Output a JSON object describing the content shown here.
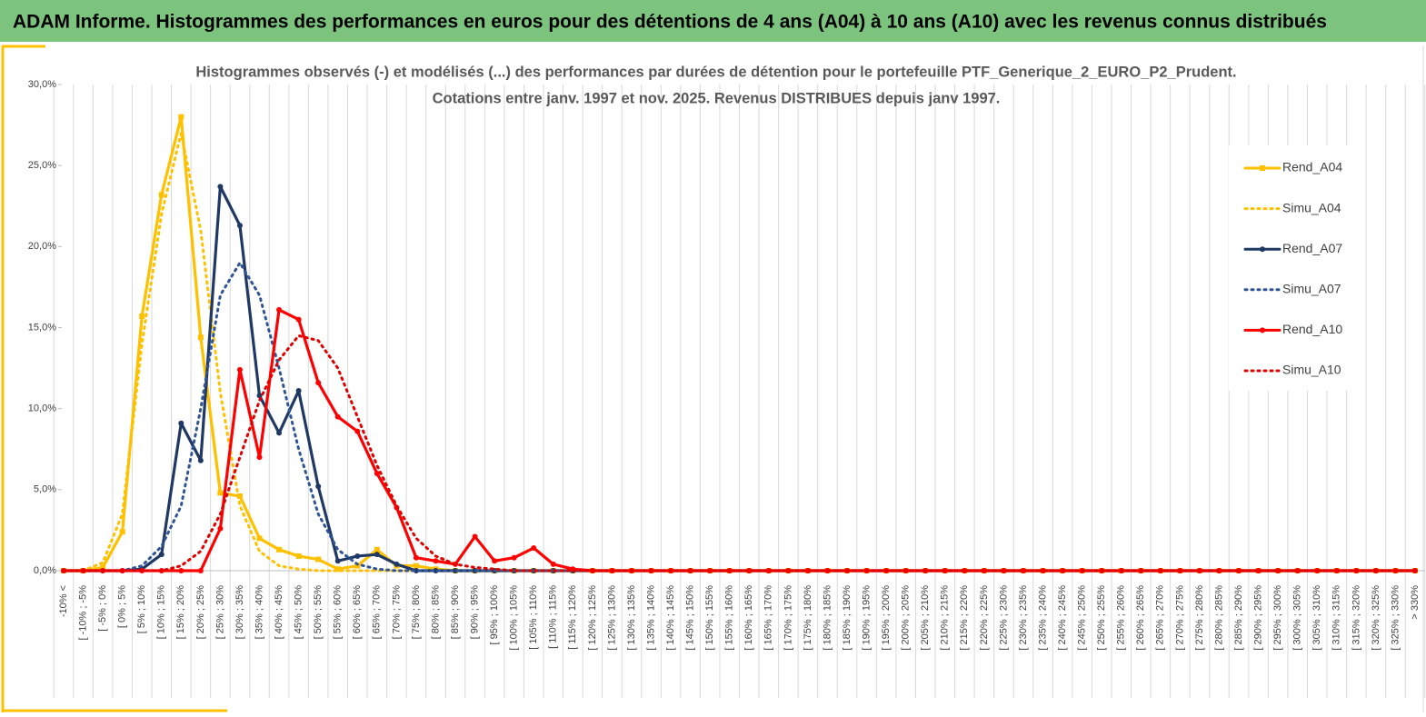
{
  "header": {
    "title": "ADAM Informe. Histogrammes des performances en euros pour des détentions de 4 ans (A04) à 10 ans (A10) avec les revenus connus distribués"
  },
  "chart_data": {
    "type": "line",
    "title": "Histogrammes observés (-) et modélisés (...) des performances par durées de détention pour le portefeuille PTF_Generique_2_EURO_P2_Prudent.",
    "subtitle": "Cotations entre janv. 1997 et nov. 2025. Revenus DISTRIBUES depuis janv 1997.",
    "categories": [
      "-10% <",
      "[ -10% ; -5%",
      "[ -5% ; 0%",
      "[ 0% ; 5%",
      "[ 5% ; 10%",
      "[ 10% ; 15%",
      "[ 15% ; 20%",
      "[ 20% ; 25%",
      "[ 25% ; 30%",
      "[ 30% ; 35%",
      "[ 35% ; 40%",
      "[ 40% ; 45%",
      "[ 45% ; 50%",
      "[ 50% ; 55%",
      "[ 55% ; 60%",
      "[ 60% ; 65%",
      "[ 65% ; 70%",
      "[ 70% ; 75%",
      "[ 75% ; 80%",
      "[ 80% ; 85%",
      "[ 85% ; 90%",
      "[ 90% ; 95%",
      "[ 95% ; 100%",
      "[ 100% ; 105%",
      "[ 105% ; 110%",
      "[ 110% ; 115%",
      "[ 115% ; 120%",
      "[ 120% ; 125%",
      "[ 125% ; 130%",
      "[ 130% ; 135%",
      "[ 135% ; 140%",
      "[ 140% ; 145%",
      "[ 145% ; 150%",
      "[ 150% ; 155%",
      "[ 155% ; 160%",
      "[ 160% ; 165%",
      "[ 165% ; 170%",
      "[ 170% ; 175%",
      "[ 175% ; 180%",
      "[ 180% ; 185%",
      "[ 185% ; 190%",
      "[ 190% ; 195%",
      "[ 195% ; 200%",
      "[ 200% ; 205%",
      "[ 205% ; 210%",
      "[ 210% ; 215%",
      "[ 215% ; 220%",
      "[ 220% ; 225%",
      "[ 225% ; 230%",
      "[ 230% ; 235%",
      "[ 235% ; 240%",
      "[ 240% ; 245%",
      "[ 245% ; 250%",
      "[ 250% ; 255%",
      "[ 255% ; 260%",
      "[ 260% ; 265%",
      "[ 265% ; 270%",
      "[ 270% ; 275%",
      "[ 275% ; 280%",
      "[ 280% ; 285%",
      "[ 285% ; 290%",
      "[ 290% ; 295%",
      "[ 295% ; 300%",
      "[ 300% ; 305%",
      "[ 305% ; 310%",
      "[ 310% ; 315%",
      "[ 315% ; 320%",
      "[ 320% ; 325%",
      "[ 325% ; 330%",
      "> 330%"
    ],
    "series": [
      {
        "name": "Rend_A04",
        "color": "#ffc000",
        "style": "solid",
        "marker": "square",
        "values": [
          0,
          0,
          0.2,
          2.4,
          15.7,
          23.2,
          28.0,
          14.4,
          4.8,
          4.6,
          2.0,
          1.3,
          0.9,
          0.7,
          0.1,
          0.3,
          1.3,
          0.3,
          0.3,
          0.1,
          0,
          0,
          0,
          0,
          0,
          0,
          0,
          0,
          0,
          0,
          0,
          0,
          0,
          0,
          0,
          0,
          0,
          0,
          0,
          0,
          0,
          0,
          0,
          0,
          0,
          0,
          0,
          0,
          0,
          0,
          0,
          0,
          0,
          0,
          0,
          0,
          0,
          0,
          0,
          0,
          0,
          0,
          0,
          0,
          0,
          0,
          0,
          0,
          0,
          0
        ]
      },
      {
        "name": "Simu_A04",
        "color": "#ffc000",
        "style": "dotted",
        "values": [
          0,
          0,
          0.5,
          3.5,
          14,
          22,
          27,
          21,
          11,
          4,
          1.2,
          0.3,
          0.1,
          0,
          0,
          0,
          0,
          0,
          0,
          0,
          0,
          0,
          0,
          0,
          0,
          0,
          0,
          0,
          0,
          0,
          0,
          0,
          0,
          0,
          0,
          0,
          0,
          0,
          0,
          0,
          0,
          0,
          0,
          0,
          0,
          0,
          0,
          0,
          0,
          0,
          0,
          0,
          0,
          0,
          0,
          0,
          0,
          0,
          0,
          0,
          0,
          0,
          0,
          0,
          0,
          0,
          0,
          0,
          0,
          0
        ]
      },
      {
        "name": "Rend_A07",
        "color": "#1f3864",
        "style": "solid",
        "marker": "circle",
        "values": [
          0,
          0,
          0,
          0,
          0.1,
          1.0,
          9.1,
          6.8,
          23.7,
          21.3,
          10.8,
          8.5,
          11.1,
          5.2,
          0.6,
          0.9,
          1.0,
          0.4,
          0,
          0,
          0,
          0,
          0,
          0,
          0,
          0,
          0,
          0,
          0,
          0,
          0,
          0,
          0,
          0,
          0,
          0,
          0,
          0,
          0,
          0,
          0,
          0,
          0,
          0,
          0,
          0,
          0,
          0,
          0,
          0,
          0,
          0,
          0,
          0,
          0,
          0,
          0,
          0,
          0,
          0,
          0,
          0,
          0,
          0,
          0,
          0,
          0,
          0,
          0,
          0
        ]
      },
      {
        "name": "Simu_A07",
        "color": "#2f5597",
        "style": "dotted",
        "values": [
          0,
          0,
          0,
          0,
          0.3,
          1.5,
          4,
          10,
          17,
          19,
          17,
          12.5,
          7.5,
          3.5,
          1.3,
          0.4,
          0.1,
          0,
          0,
          0,
          0,
          0,
          0,
          0,
          0,
          0,
          0,
          0,
          0,
          0,
          0,
          0,
          0,
          0,
          0,
          0,
          0,
          0,
          0,
          0,
          0,
          0,
          0,
          0,
          0,
          0,
          0,
          0,
          0,
          0,
          0,
          0,
          0,
          0,
          0,
          0,
          0,
          0,
          0,
          0,
          0,
          0,
          0,
          0,
          0,
          0,
          0,
          0,
          0,
          0
        ]
      },
      {
        "name": "Rend_A10",
        "color": "#ff0000",
        "style": "solid",
        "marker": "circle",
        "values": [
          0,
          0,
          0,
          0,
          0,
          0,
          0,
          0,
          2.6,
          12.4,
          7.0,
          16.1,
          15.5,
          11.6,
          9.5,
          8.6,
          6.0,
          3.9,
          0.8,
          0.6,
          0.4,
          2.1,
          0.6,
          0.8,
          1.4,
          0.4,
          0.1,
          0,
          0,
          0,
          0,
          0,
          0,
          0,
          0,
          0,
          0,
          0,
          0,
          0,
          0,
          0,
          0,
          0,
          0,
          0,
          0,
          0,
          0,
          0,
          0,
          0,
          0,
          0,
          0,
          0,
          0,
          0,
          0,
          0,
          0,
          0,
          0,
          0,
          0,
          0,
          0,
          0,
          0,
          0
        ]
      },
      {
        "name": "Simu_A10",
        "color": "#e00000",
        "style": "dotted",
        "values": [
          0,
          0,
          0,
          0,
          0,
          0,
          0.3,
          1.2,
          3.5,
          7,
          10.5,
          13,
          14.5,
          14.2,
          12.5,
          9.5,
          6.5,
          4,
          2,
          0.9,
          0.4,
          0.2,
          0.1,
          0,
          0,
          0,
          0,
          0,
          0,
          0,
          0,
          0,
          0,
          0,
          0,
          0,
          0,
          0,
          0,
          0,
          0,
          0,
          0,
          0,
          0,
          0,
          0,
          0,
          0,
          0,
          0,
          0,
          0,
          0,
          0,
          0,
          0,
          0,
          0,
          0,
          0,
          0,
          0,
          0,
          0,
          0,
          0,
          0,
          0,
          0
        ]
      }
    ],
    "ylim": [
      0,
      30
    ],
    "yticks": [
      {
        "value": 0,
        "label": "0,0%"
      },
      {
        "value": 5,
        "label": "5,0%"
      },
      {
        "value": 10,
        "label": "10,0%"
      },
      {
        "value": 15,
        "label": "15,0%"
      },
      {
        "value": 20,
        "label": "20,0%"
      },
      {
        "value": 25,
        "label": "25,0%"
      },
      {
        "value": 30,
        "label": "30,0%"
      }
    ],
    "grid": true,
    "legend": "right"
  }
}
